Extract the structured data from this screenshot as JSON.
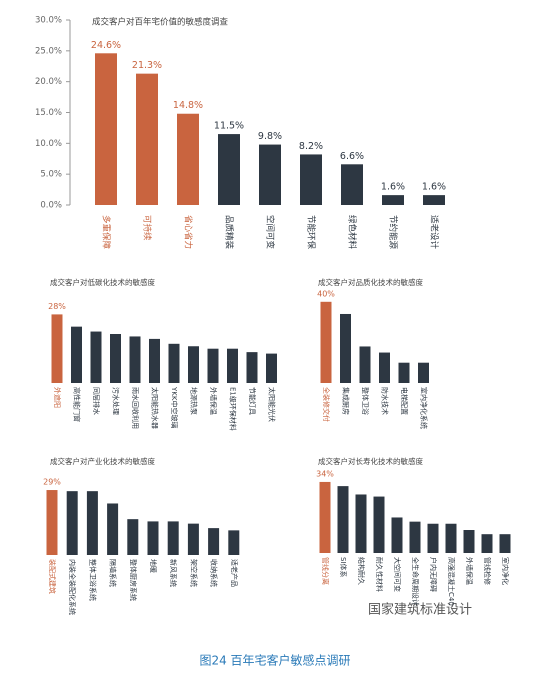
{
  "chart_data": [
    {
      "type": "bar",
      "title": "成交客户对百年宅价值的敏感度调查",
      "categories": [
        "多重保障",
        "可持续",
        "省心省力",
        "品质精装",
        "空间可变",
        "节能环保",
        "绿色材料",
        "节约能源",
        "适老设计"
      ],
      "values": [
        24.6,
        21.3,
        14.8,
        11.5,
        9.8,
        8.2,
        6.6,
        1.6,
        1.6
      ],
      "value_labels": [
        "24.6%",
        "21.3%",
        "14.8%",
        "11.5%",
        "9.8%",
        "8.2%",
        "6.6%",
        "1.6%",
        "1.6%"
      ],
      "colors": [
        "#c9643f",
        "#c9643f",
        "#c9643f",
        "#2d3742",
        "#2d3742",
        "#2d3742",
        "#2d3742",
        "#2d3742",
        "#2d3742"
      ],
      "ylim": [
        0,
        30
      ],
      "yticks": [
        {
          "value": 0,
          "label": "0.0%"
        },
        {
          "value": 5,
          "label": "5.0%"
        },
        {
          "value": 10,
          "label": "10.0%"
        },
        {
          "value": 15,
          "label": "15.0%"
        },
        {
          "value": 20,
          "label": "20.0%"
        },
        {
          "value": 25,
          "label": "25.0%"
        },
        {
          "value": 30,
          "label": "30.0%"
        }
      ]
    },
    {
      "type": "bar",
      "title": "成交客户对低碳化技术的敏感度",
      "categories": [
        "外遮阳",
        "高性能门窗",
        "同层排水",
        "污水处理",
        "雨水回收利用",
        "太阳能热水器",
        "YKK中空玻璃",
        "地源热泵",
        "外墙保温",
        "E1级环保材料",
        "节能灯具",
        "太阳能光伏"
      ],
      "values": [
        28,
        23,
        21,
        20,
        19,
        18,
        16,
        15,
        14,
        14,
        12.6,
        12
      ],
      "value_labels": [
        "28%",
        null,
        null,
        null,
        null,
        null,
        null,
        null,
        null,
        null,
        null,
        null
      ],
      "colors": [
        "#c9643f",
        "#2d3742",
        "#2d3742",
        "#2d3742",
        "#2d3742",
        "#2d3742",
        "#2d3742",
        "#2d3742",
        "#2d3742",
        "#2d3742",
        "#2d3742",
        "#2d3742"
      ]
    },
    {
      "type": "bar",
      "title": "成交客户对品质化技术的敏感度",
      "categories": [
        "全装修交付",
        "集成厨房",
        "整体卫浴",
        "防水技术",
        "电梯配置",
        "室内净化系统"
      ],
      "values": [
        40,
        34,
        18,
        15,
        10,
        10
      ],
      "value_labels": [
        "40%",
        null,
        null,
        null,
        null,
        null
      ],
      "colors": [
        "#c9643f",
        "#2d3742",
        "#2d3742",
        "#2d3742",
        "#2d3742",
        "#2d3742"
      ]
    },
    {
      "type": "bar",
      "title": "成交客户对产业化技术的敏感度",
      "categories": [
        "装配式建筑",
        "内装全装配化系统",
        "整体卫浴系统",
        "隔墙系统",
        "整体厨房系统",
        "地暖",
        "新风系统",
        "架空系统",
        "收纳系统",
        "适老产品"
      ],
      "values": [
        29,
        28.5,
        28.5,
        23,
        16,
        15,
        15,
        14,
        12,
        11
      ],
      "value_labels": [
        "29%",
        null,
        null,
        null,
        null,
        null,
        null,
        null,
        null,
        null
      ],
      "colors": [
        "#c9643f",
        "#2d3742",
        "#2d3742",
        "#2d3742",
        "#2d3742",
        "#2d3742",
        "#2d3742",
        "#2d3742",
        "#2d3742",
        "#2d3742"
      ]
    },
    {
      "type": "bar",
      "title": "成交客户对长寿化技术的敏感度",
      "categories": [
        "管线分离",
        "SI体系",
        "结构耐久",
        "耐久性材料",
        "大空间可变",
        "全生命周期设计",
        "户内无障碍",
        "高强混凝土C40",
        "外墙保温",
        "管线检修",
        "室内净化"
      ],
      "values": [
        34,
        32,
        28,
        27,
        17,
        15,
        14,
        14,
        11,
        9,
        9
      ],
      "value_labels": [
        "34%",
        null,
        null,
        null,
        null,
        null,
        null,
        null,
        null,
        null,
        null
      ],
      "colors": [
        "#c9643f",
        "#2d3742",
        "#2d3742",
        "#2d3742",
        "#2d3742",
        "#2d3742",
        "#2d3742",
        "#2d3742",
        "#2d3742",
        "#2d3742",
        "#2d3742"
      ]
    }
  ],
  "watermark": "国家建筑标准设计",
  "caption": "图24  百年宅客户敏感点调研"
}
